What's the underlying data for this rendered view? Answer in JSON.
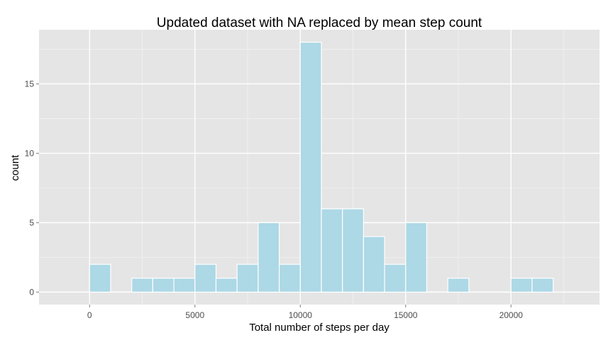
{
  "chart_data": {
    "type": "bar",
    "title": "Updated dataset with NA replaced by mean step count",
    "xlabel": "Total number of steps per day",
    "ylabel": "count",
    "bin_width": 1000,
    "bins": [
      {
        "x0": 0,
        "x1": 1000,
        "count": 2
      },
      {
        "x0": 1000,
        "x1": 2000,
        "count": 0
      },
      {
        "x0": 2000,
        "x1": 3000,
        "count": 1
      },
      {
        "x0": 3000,
        "x1": 4000,
        "count": 1
      },
      {
        "x0": 4000,
        "x1": 5000,
        "count": 1
      },
      {
        "x0": 5000,
        "x1": 6000,
        "count": 2
      },
      {
        "x0": 6000,
        "x1": 7000,
        "count": 1
      },
      {
        "x0": 7000,
        "x1": 8000,
        "count": 2
      },
      {
        "x0": 8000,
        "x1": 9000,
        "count": 5
      },
      {
        "x0": 9000,
        "x1": 10000,
        "count": 2
      },
      {
        "x0": 10000,
        "x1": 11000,
        "count": 18
      },
      {
        "x0": 11000,
        "x1": 12000,
        "count": 6
      },
      {
        "x0": 12000,
        "x1": 13000,
        "count": 6
      },
      {
        "x0": 13000,
        "x1": 14000,
        "count": 4
      },
      {
        "x0": 14000,
        "x1": 15000,
        "count": 2
      },
      {
        "x0": 15000,
        "x1": 16000,
        "count": 5
      },
      {
        "x0": 16000,
        "x1": 17000,
        "count": 0
      },
      {
        "x0": 17000,
        "x1": 18000,
        "count": 1
      },
      {
        "x0": 18000,
        "x1": 19000,
        "count": 0
      },
      {
        "x0": 19000,
        "x1": 20000,
        "count": 0
      },
      {
        "x0": 20000,
        "x1": 21000,
        "count": 1
      },
      {
        "x0": 21000,
        "x1": 22000,
        "count": 1
      }
    ],
    "xlim": [
      -2400,
      24200
    ],
    "ylim": [
      -0.9,
      18.9
    ],
    "xticks": [
      0,
      5000,
      10000,
      15000,
      20000
    ],
    "xtick_labels": [
      "0",
      "5000",
      "10000",
      "15000",
      "20000"
    ],
    "yticks": [
      0,
      5,
      10,
      15
    ],
    "ytick_labels": [
      "0",
      "5",
      "10",
      "15"
    ],
    "grid": true,
    "colors": {
      "panel": "#e5e5e5",
      "grid_major": "#ffffff",
      "grid_minor": "#f2f2f2",
      "bar_fill": "#add8e6",
      "bar_stroke": "#ffffff",
      "tick_color": "#7f7f7f"
    }
  }
}
